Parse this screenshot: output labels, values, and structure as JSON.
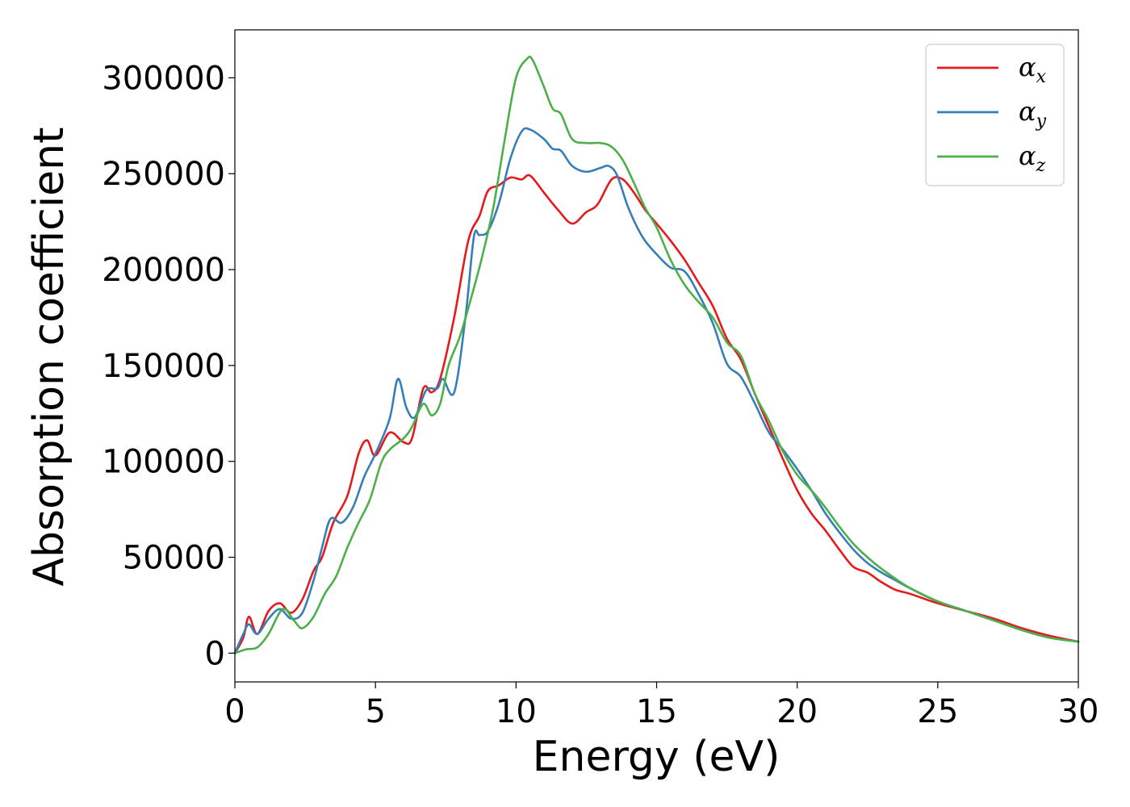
{
  "chart_data": {
    "type": "line",
    "title": "",
    "xlabel": "Energy (eV)",
    "ylabel": "Absorption coefficient",
    "xlim": [
      0,
      30
    ],
    "ylim": [
      -15000,
      325000
    ],
    "xticks": [
      0,
      5,
      10,
      15,
      20,
      25,
      30
    ],
    "xtick_labels": [
      "0",
      "5",
      "10",
      "15",
      "20",
      "25",
      "30"
    ],
    "yticks": [
      0,
      50000,
      100000,
      150000,
      200000,
      250000,
      300000
    ],
    "ytick_labels": [
      "0",
      "50000",
      "100000",
      "150000",
      "200000",
      "250000",
      "300000"
    ],
    "grid": false,
    "legend_position": "top-right",
    "series": [
      {
        "name": "αx",
        "symbol": "α",
        "subscript": "x",
        "color": "#e41a1c",
        "x": [
          0,
          0.3,
          0.5,
          0.8,
          1.2,
          1.6,
          2.0,
          2.4,
          2.8,
          3.1,
          3.5,
          4.0,
          4.4,
          4.7,
          5.0,
          5.5,
          6.0,
          6.3,
          6.7,
          7.0,
          7.3,
          7.8,
          8.3,
          8.7,
          9.0,
          9.4,
          9.8,
          10.2,
          10.5,
          11.0,
          11.5,
          12.0,
          12.5,
          12.9,
          13.4,
          13.8,
          14.2,
          14.6,
          15.0,
          15.5,
          16.0,
          16.5,
          17.0,
          17.5,
          18.0,
          18.5,
          19.0,
          19.5,
          20.0,
          20.5,
          21.0,
          21.5,
          22.0,
          22.5,
          23.0,
          23.5,
          24.0,
          25.0,
          26.0,
          27.0,
          28.0,
          29.0,
          30.0
        ],
        "values": [
          0,
          8000,
          19000,
          10000,
          22000,
          26000,
          21000,
          28000,
          43000,
          50000,
          68000,
          82000,
          104000,
          111000,
          103000,
          115000,
          110000,
          112000,
          138000,
          136000,
          143000,
          175000,
          215000,
          228000,
          241000,
          244000,
          248000,
          247000,
          249000,
          240000,
          231000,
          224000,
          230000,
          234000,
          247000,
          247000,
          240000,
          231000,
          224000,
          215000,
          205000,
          193000,
          181000,
          164000,
          153000,
          135000,
          118000,
          101000,
          85000,
          73000,
          64000,
          54000,
          45000,
          42000,
          37000,
          33000,
          31000,
          26000,
          22000,
          18000,
          13000,
          9000,
          6000
        ]
      },
      {
        "name": "αy",
        "symbol": "α",
        "subscript": "y",
        "color": "#377eb8",
        "x": [
          0,
          0.3,
          0.5,
          0.8,
          1.2,
          1.6,
          2.0,
          2.4,
          2.8,
          3.1,
          3.4,
          3.8,
          4.2,
          4.6,
          5.0,
          5.5,
          5.8,
          6.1,
          6.4,
          6.8,
          7.2,
          7.4,
          7.8,
          8.2,
          8.5,
          8.7,
          9.0,
          9.4,
          9.8,
          10.2,
          10.5,
          11.0,
          11.3,
          11.6,
          12.0,
          12.5,
          13.0,
          13.3,
          13.6,
          14.0,
          14.5,
          15.0,
          15.5,
          16.0,
          16.5,
          17.0,
          17.5,
          18.0,
          18.5,
          19.0,
          19.5,
          20.0,
          20.5,
          21.0,
          21.5,
          22.0,
          22.5,
          23.0,
          23.5,
          24.0,
          25.0,
          26.0,
          27.0,
          28.0,
          29.0,
          30.0
        ],
        "values": [
          0,
          10000,
          15000,
          10000,
          18000,
          23000,
          18000,
          21000,
          38000,
          55000,
          70000,
          68000,
          76000,
          92000,
          104000,
          122000,
          143000,
          128000,
          123000,
          137000,
          138000,
          143000,
          136000,
          175000,
          217000,
          218000,
          220000,
          235000,
          258000,
          272000,
          273000,
          268000,
          263000,
          262000,
          254000,
          251000,
          253000,
          254000,
          249000,
          232000,
          217000,
          208000,
          201000,
          199000,
          187000,
          172000,
          151000,
          144000,
          130000,
          115000,
          106000,
          96000,
          85000,
          73000,
          63000,
          54000,
          47000,
          42000,
          38000,
          34000,
          27000,
          22000,
          17000,
          12000,
          8000,
          6000
        ]
      },
      {
        "name": "αz",
        "symbol": "α",
        "subscript": "z",
        "color": "#4daf4a",
        "x": [
          0,
          0.4,
          0.8,
          1.2,
          1.7,
          2.1,
          2.4,
          2.8,
          3.2,
          3.6,
          4.0,
          4.4,
          4.8,
          5.2,
          5.5,
          6.0,
          6.3,
          6.7,
          7.0,
          7.3,
          7.6,
          8.0,
          8.4,
          8.8,
          9.2,
          9.6,
          10.0,
          10.4,
          10.6,
          11.0,
          11.3,
          11.6,
          12.0,
          12.5,
          13.0,
          13.4,
          13.8,
          14.2,
          14.6,
          15.0,
          15.5,
          16.0,
          16.5,
          17.0,
          17.5,
          18.0,
          18.5,
          19.0,
          19.5,
          20.0,
          20.5,
          21.0,
          21.5,
          22.0,
          22.5,
          23.0,
          24.0,
          25.0,
          26.0,
          27.0,
          28.0,
          29.0,
          30.0
        ],
        "values": [
          0,
          2000,
          3000,
          10000,
          23000,
          17000,
          13000,
          19000,
          31000,
          40000,
          55000,
          68000,
          80000,
          99000,
          106000,
          112000,
          118000,
          130000,
          124000,
          130000,
          150000,
          165000,
          185000,
          207000,
          233000,
          268000,
          300000,
          310000,
          309000,
          295000,
          284000,
          281000,
          268000,
          266000,
          266000,
          264000,
          257000,
          245000,
          232000,
          222000,
          205000,
          192000,
          183000,
          175000,
          162000,
          155000,
          135000,
          121000,
          105000,
          93000,
          85000,
          76000,
          66000,
          57000,
          50000,
          44000,
          34000,
          27000,
          22000,
          17000,
          12000,
          8000,
          6000
        ]
      }
    ]
  }
}
